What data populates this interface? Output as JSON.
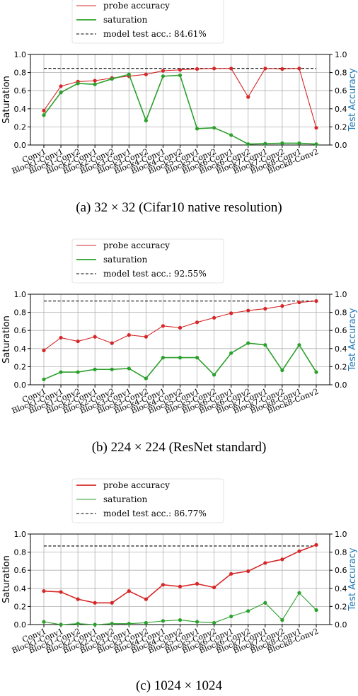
{
  "chart_data": [
    {
      "type": "line",
      "categories": [
        "Conv1",
        "Block1-Conv1",
        "Block1-Conv2",
        "Block2-Conv1",
        "Block2-Conv2",
        "Block3-Conv1",
        "Block3-Conv2",
        "Block4-Conv1",
        "Block4-Conv2",
        "Block5-Conv1",
        "Block5-Conv2",
        "Block6-Conv1",
        "Block6-Conv2",
        "Block7-Conv1",
        "Block7-Conv2",
        "Block8-Conv1",
        "Block8-Conv2"
      ],
      "series": [
        {
          "name": "probe accuracy",
          "color": "#d62728",
          "values": [
            0.38,
            0.65,
            0.7,
            0.71,
            0.74,
            0.76,
            0.78,
            0.82,
            0.83,
            0.84,
            0.845,
            0.845,
            0.53,
            0.845,
            0.84,
            0.845,
            0.19
          ]
        },
        {
          "name": "saturation",
          "color": "#2ca02c",
          "values": [
            0.33,
            0.58,
            0.68,
            0.67,
            0.73,
            0.78,
            0.27,
            0.76,
            0.77,
            0.18,
            0.19,
            0.11,
            0.01,
            0.015,
            0.02,
            0.02,
            0.01
          ]
        }
      ],
      "reference": {
        "label": "model test acc.: 84.61%",
        "value": 0.8461
      },
      "emphasis": "saturation",
      "ylabel": "Saturation",
      "ylabel_right": "Test Accuracy",
      "ylim": [
        0,
        1.0
      ],
      "yticks": [
        "0.0",
        "0.2",
        "0.4",
        "0.6",
        "0.8",
        "1.0"
      ],
      "grid": true,
      "caption": "(a) 32 × 32 (Cifar10 native resolution)"
    },
    {
      "type": "line",
      "categories": [
        "Conv1",
        "Block1-Conv1",
        "Block1-Conv2",
        "Block2-Conv1",
        "Block2-Conv2",
        "Block3-Conv1",
        "Block3-Conv2",
        "Block4-Conv1",
        "Block4-Conv2",
        "Block5-Conv1",
        "Block5-Conv2",
        "Block6-Conv1",
        "Block6-Conv2",
        "Block7-Conv1",
        "Block7-Conv2",
        "Block8-Conv1",
        "Block8-Conv2"
      ],
      "series": [
        {
          "name": "probe accuracy",
          "color": "#d62728",
          "values": [
            0.38,
            0.52,
            0.48,
            0.53,
            0.46,
            0.55,
            0.53,
            0.65,
            0.63,
            0.69,
            0.74,
            0.79,
            0.82,
            0.84,
            0.87,
            0.91,
            0.925
          ]
        },
        {
          "name": "saturation",
          "color": "#2ca02c",
          "values": [
            0.06,
            0.14,
            0.14,
            0.17,
            0.17,
            0.18,
            0.07,
            0.3,
            0.3,
            0.3,
            0.11,
            0.35,
            0.46,
            0.44,
            0.16,
            0.44,
            0.14
          ]
        }
      ],
      "reference": {
        "label": "model test acc.: 92.55%",
        "value": 0.9255
      },
      "emphasis": "saturation",
      "ylabel": "Saturation",
      "ylabel_right": "Test Accuracy",
      "ylim": [
        0,
        1.0
      ],
      "yticks": [
        "0.0",
        "0.2",
        "0.4",
        "0.6",
        "0.8",
        "1.0"
      ],
      "grid": true,
      "caption": "(b) 224 × 224 (ResNet standard)"
    },
    {
      "type": "line",
      "categories": [
        "Conv1",
        "Block1-Conv1",
        "Block1-Conv2",
        "Block2-Conv1",
        "Block2-Conv2",
        "Block3-Conv1",
        "Block3-Conv2",
        "Block4-Conv1",
        "Block4-Conv2",
        "Block5-Conv1",
        "Block5-Conv2",
        "Block6-Conv1",
        "Block6-Conv2",
        "Block7-Conv1",
        "Block7-Conv2",
        "Block8-Conv1",
        "Block8-Conv2"
      ],
      "series": [
        {
          "name": "probe accuracy",
          "color": "#d62728",
          "values": [
            0.37,
            0.36,
            0.28,
            0.24,
            0.24,
            0.37,
            0.28,
            0.44,
            0.42,
            0.45,
            0.41,
            0.56,
            0.59,
            0.68,
            0.72,
            0.81,
            0.88
          ]
        },
        {
          "name": "saturation",
          "color": "#2ca02c",
          "values": [
            0.03,
            0.0,
            0.01,
            0.0,
            0.01,
            0.01,
            0.02,
            0.04,
            0.05,
            0.03,
            0.02,
            0.09,
            0.15,
            0.24,
            0.05,
            0.35,
            0.16
          ]
        }
      ],
      "reference": {
        "label": "model test acc.: 86.77%",
        "value": 0.8677
      },
      "emphasis": "probe accuracy",
      "ylabel": "Saturation",
      "ylabel_right": "Test Accuracy",
      "ylim": [
        0,
        1.0
      ],
      "yticks": [
        "0.0",
        "0.2",
        "0.4",
        "0.6",
        "0.8",
        "1.0"
      ],
      "grid": true,
      "caption": "(c) 1024 × 1024"
    }
  ]
}
